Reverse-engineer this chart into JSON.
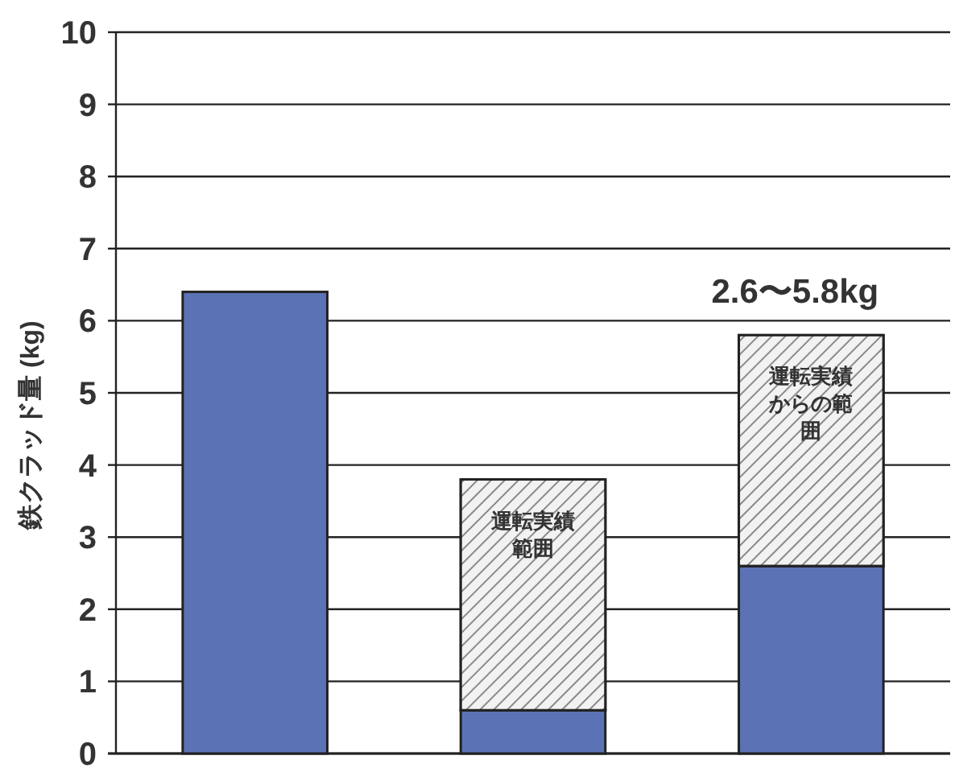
{
  "chart_data": {
    "type": "bar",
    "stacked": true,
    "ylabel": "鉄クラッド量 (kg)",
    "categories": [
      null,
      null,
      null
    ],
    "series": [
      {
        "color": "#5b73b5",
        "values": [
          6.4,
          0.6,
          2.6
        ]
      },
      {
        "color": "#d9d9d9",
        "values": [
          null,
          3.2,
          3.2
        ],
        "value_labels": [
          null,
          "運転実績範囲",
          "運転実績からの範囲"
        ]
      }
    ],
    "annotations": [
      "2.6〜5.8kg"
    ],
    "ylim": [
      0,
      10
    ],
    "yticks": [
      0,
      1,
      2,
      3,
      4,
      5,
      6,
      7,
      8,
      9,
      10
    ],
    "grid": "y"
  }
}
